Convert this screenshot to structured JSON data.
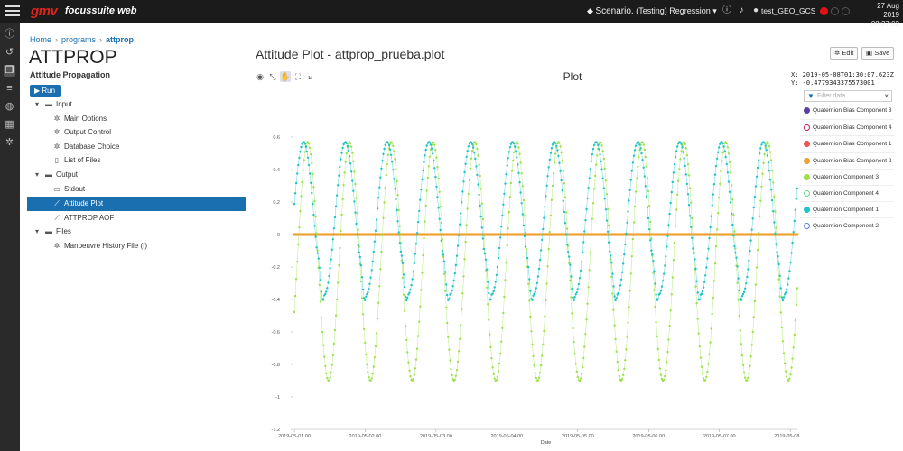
{
  "header": {
    "logo": "gmv",
    "app_name": "focussuite web",
    "scenario_label": "Scenario.",
    "scenario_value": "(Testing) Regression",
    "user": "test_GEO_GCS",
    "date": "27 Aug 2019",
    "time": "08:37:02",
    "colors": {
      "accent": "#1a6fb0",
      "logo": "#e0251b",
      "status_red": "#e31010"
    }
  },
  "sidebar": {
    "icons": [
      "info-icon",
      "history-icon",
      "windows-icon",
      "database-icon",
      "globe-icon",
      "calendar-icon",
      "gear-icon"
    ]
  },
  "breadcrumb": {
    "home": "Home",
    "programs": "programs",
    "current": "attprop"
  },
  "program": {
    "title": "ATTPROP",
    "subtitle": "Attitude Propagation",
    "run_label": "Run"
  },
  "tree": {
    "input": "Input",
    "main_options": "Main Options",
    "output_control": "Output Control",
    "database_choice": "Database Choice",
    "list_of_files": "List of Files",
    "output": "Output",
    "stdout": "Stdout",
    "attitude_plot": "Attitude Plot",
    "attprop_aof": "ATTPROP AOF",
    "files": "Files",
    "manoeuvre": "Manoeuvre History File (I)"
  },
  "plot_panel": {
    "title": "Attitude Plot - attprop_prueba.plot",
    "edit_label": "Edit",
    "save_label": "Save",
    "coord_x": "X: 2019-05-08T01:30:07.623Z",
    "coord_y": "Y: -0.4779343375573001",
    "filter_placeholder": "Filter data...",
    "legend": [
      {
        "name": "Quaternion Bias Component 3",
        "color": "#5b3fa8",
        "filled": true
      },
      {
        "name": "Quaternion Bias Component 4",
        "color": "#c2185b",
        "filled": false
      },
      {
        "name": "Quaternion Bias Component 1",
        "color": "#ef5350",
        "filled": true
      },
      {
        "name": "Quaternion Bias Component 2",
        "color": "#f0a030",
        "filled": true
      },
      {
        "name": "Quaternion Component 3",
        "color": "#9be24a",
        "filled": true
      },
      {
        "name": "Quaternion Component 4",
        "color": "#5fd38a",
        "filled": false
      },
      {
        "name": "Quaternion Component 1",
        "color": "#1fc4c4",
        "filled": true
      },
      {
        "name": "Quaternion Component 2",
        "color": "#5b7fd0",
        "filled": false
      }
    ]
  },
  "chart_data": {
    "type": "scatter",
    "title": "Plot",
    "xlabel": "Date",
    "ylabel": "",
    "ylim": [
      -1.2,
      0.7
    ],
    "x_ticks": [
      "2019-05-01 00",
      "2019-05-02 00",
      "2019-05-03 00",
      "2019-05-04 00",
      "2019-05-05 00",
      "2019-05-06 00",
      "2019-05-07 00",
      "2019-05-08 00"
    ],
    "y_ticks": [
      "0.6",
      "0.4",
      "0.2",
      "0",
      "-0.2",
      "-0.4",
      "-0.6",
      "-0.8",
      "-1",
      "-1.2"
    ],
    "xlim_days": [
      0,
      7.1
    ],
    "period_days": 0.59,
    "series": [
      {
        "name": "Quaternion Bias Component 2",
        "color": "#f0a030",
        "shape": "constant",
        "value": 0
      },
      {
        "name": "Quaternion Component 3",
        "color": "#9be24a",
        "shape": "sine",
        "min": -0.9,
        "max": 0.57
      },
      {
        "name": "Quaternion Component 1",
        "color": "#1fc4c4",
        "shape": "bump",
        "min": -0.37,
        "max": 0.57
      }
    ],
    "grid": false,
    "legend_position": "right"
  }
}
